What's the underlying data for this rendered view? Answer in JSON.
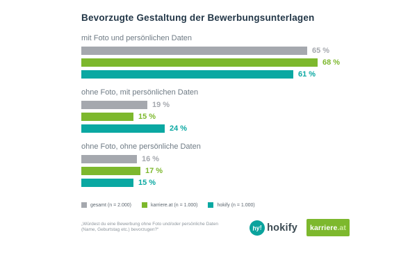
{
  "title": "Bevorzugte Gestaltung der Bewerbungsunterlagen",
  "chart_data": {
    "type": "bar",
    "orientation": "horizontal",
    "title": "Bevorzugte Gestaltung der Bewerbungsunterlagen",
    "categories": [
      "mit Foto und persönlichen Daten",
      "ohne Foto, mit persönlichen Daten",
      "ohne Foto, ohne persönliche Daten"
    ],
    "series": [
      {
        "name": "gesamt (n = 2.000)",
        "color": "#a5a8ae",
        "values": [
          65,
          19,
          16
        ]
      },
      {
        "name": "karriere.at (n = 1.000)",
        "color": "#7db82d",
        "values": [
          68,
          15,
          17
        ]
      },
      {
        "name": "hokify (n = 1.000)",
        "color": "#0aa8a2",
        "values": [
          61,
          24,
          15
        ]
      }
    ],
    "value_suffix": " %",
    "xlim": [
      0,
      100
    ],
    "grid": "off",
    "legend_position": "bottom",
    "data_labels": "on"
  },
  "footnote": {
    "line1": "„Würdest du eine Bewerbung ohne Foto und/oder persönliche Daten",
    "line2": "(Name, Geburtstag etc.) bevorzugen?“"
  },
  "logos": {
    "hokify": {
      "badge_text": "hy!",
      "wordmark": "hokify"
    },
    "karriere": {
      "wordmark": "karriere",
      "suffix": ".at"
    }
  },
  "colors": {
    "title": "#233748",
    "group_label": "#6e7a84",
    "legend_text": "#5c666f",
    "footnote": "#8d959c",
    "hokify_teal": "#0ba39d",
    "karriere_green": "#7db82d"
  }
}
